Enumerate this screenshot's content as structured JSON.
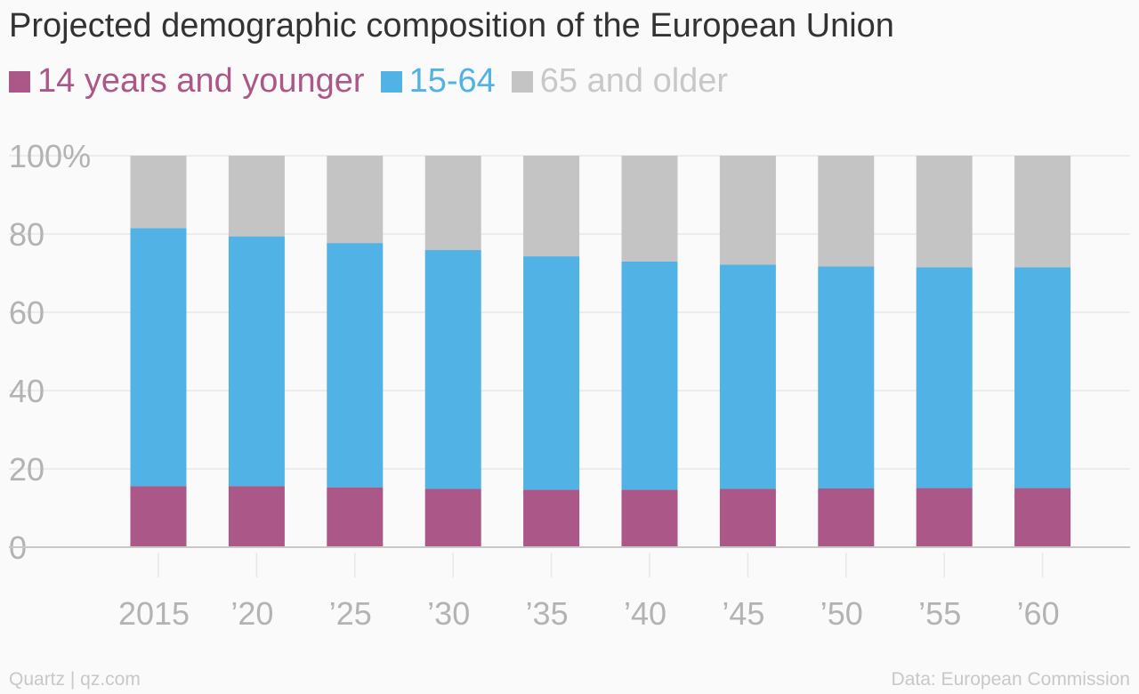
{
  "chart_data": {
    "type": "bar",
    "stacked": true,
    "title": "Projected demographic composition of the European Union",
    "categories": [
      "2015",
      "’20",
      "’25",
      "’30",
      "’35",
      "’40",
      "’45",
      "’50",
      "’55",
      "’60"
    ],
    "series": [
      {
        "name": "14 years and younger",
        "color": "#ab5787",
        "values": [
          15.6,
          15.6,
          15.3,
          14.9,
          14.7,
          14.7,
          14.9,
          15.0,
          15.1,
          15.1
        ]
      },
      {
        "name": "15-64",
        "color": "#51b2e5",
        "values": [
          65.9,
          63.8,
          62.4,
          61.0,
          59.6,
          58.3,
          57.3,
          56.7,
          56.4,
          56.4
        ]
      },
      {
        "name": "65 and older",
        "color": "#c4c4c4",
        "values": [
          18.5,
          20.6,
          22.3,
          24.1,
          25.7,
          27.0,
          27.8,
          28.3,
          28.5,
          28.5
        ]
      }
    ],
    "ylim": [
      0,
      100
    ],
    "yticks": [
      0,
      20,
      40,
      60,
      80,
      100
    ],
    "ytick_labels": [
      "0",
      "20",
      "40",
      "60",
      "80",
      "100%"
    ],
    "grid": true,
    "legend_position": "top-left"
  },
  "footer": {
    "credit": "Quartz | qz.com",
    "source": "Data: European Commission"
  },
  "colors": {
    "title": "#333333",
    "axis_text": "#b3b3b3",
    "grid": "#e8e8e8",
    "axis_line": "#c8c8c8"
  }
}
